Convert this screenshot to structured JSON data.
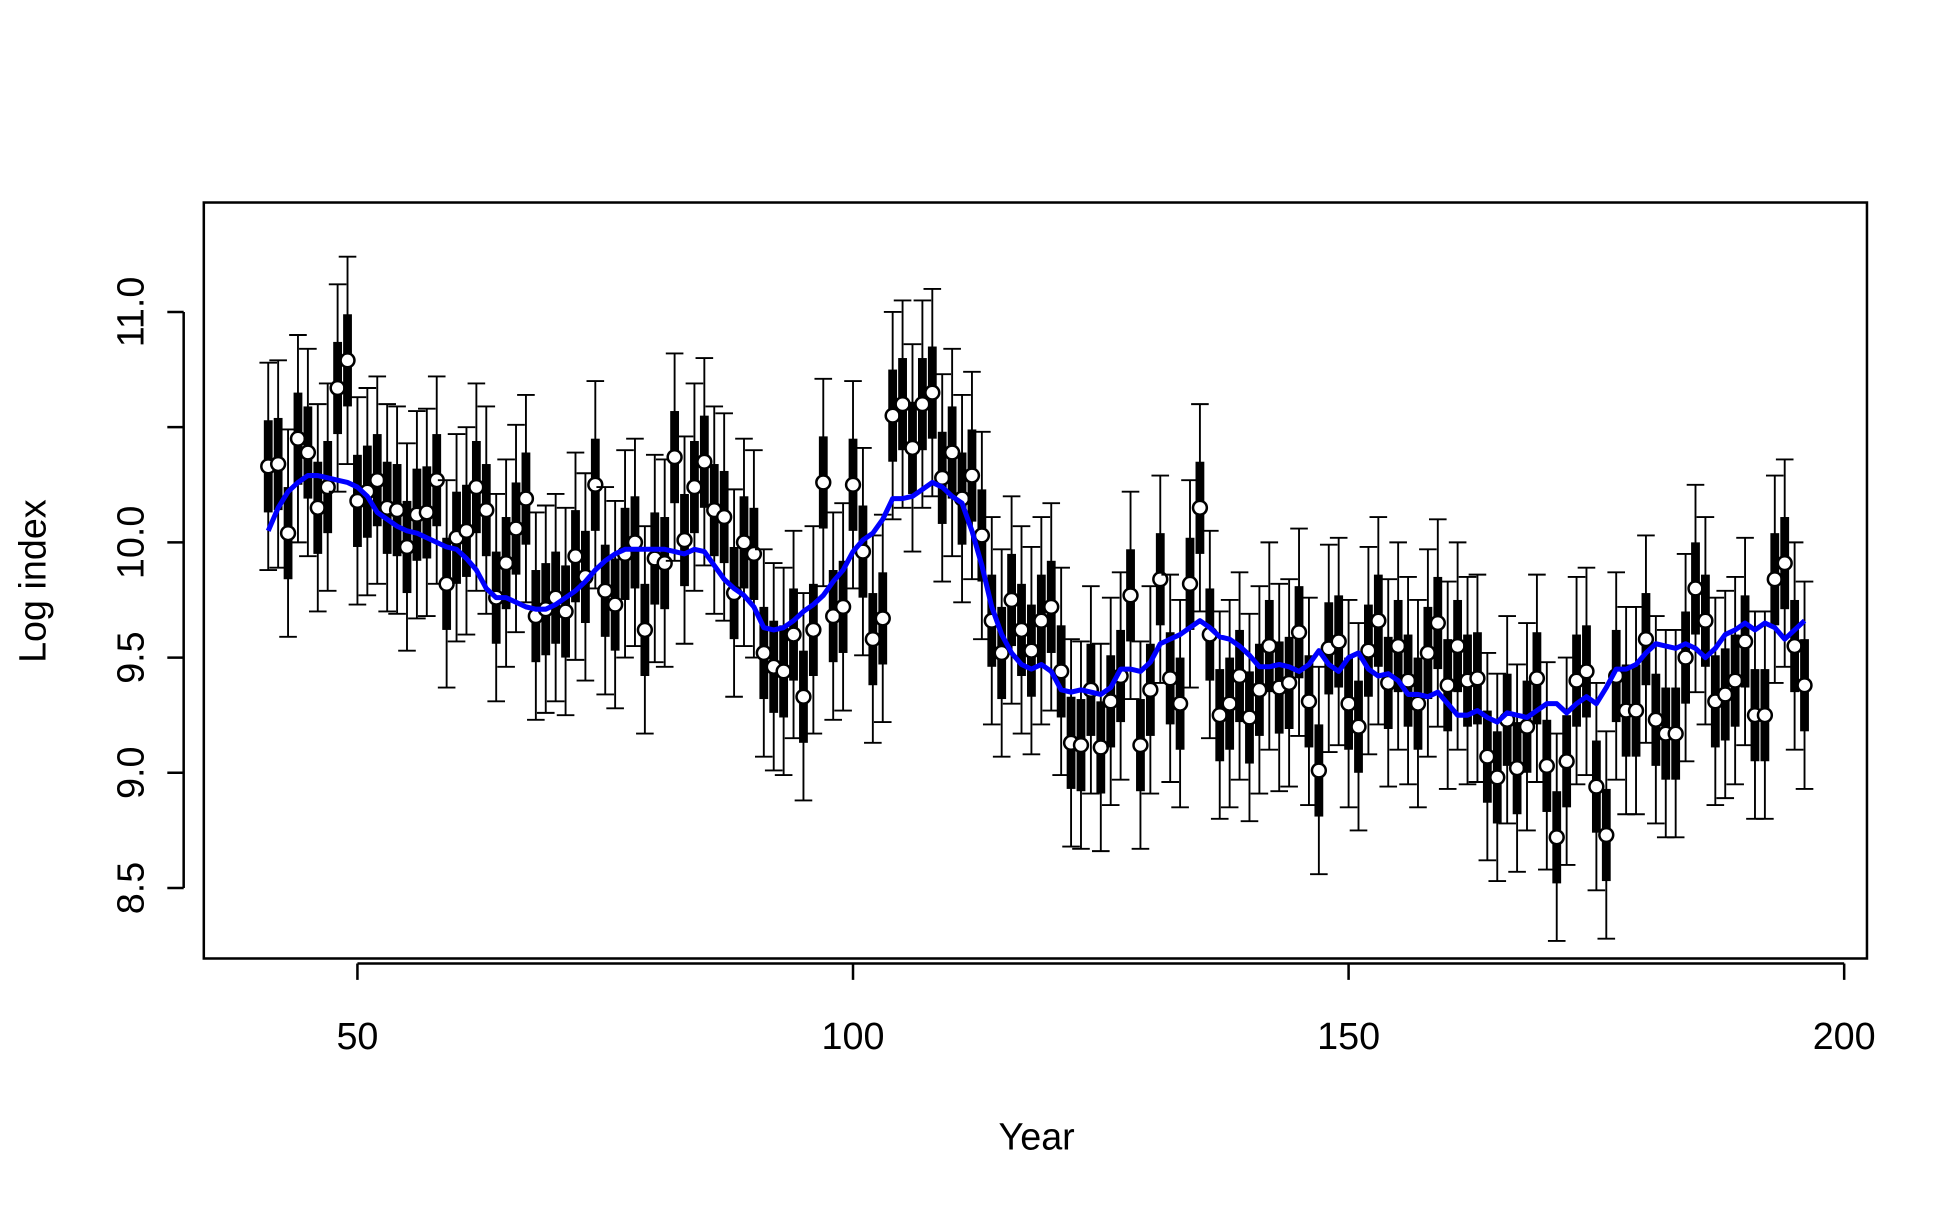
{
  "chart_data": {
    "type": "errorbar",
    "xlabel": "Year",
    "ylabel": "Log index",
    "x": [
      41,
      42,
      43,
      44,
      45,
      46,
      47,
      48,
      49,
      50,
      51,
      52,
      53,
      54,
      55,
      56,
      57,
      58,
      59,
      60,
      61,
      62,
      63,
      64,
      65,
      66,
      67,
      68,
      69,
      70,
      71,
      72,
      73,
      74,
      75,
      76,
      77,
      78,
      79,
      80,
      81,
      82,
      83,
      84,
      85,
      86,
      87,
      88,
      89,
      90,
      91,
      92,
      93,
      94,
      95,
      96,
      97,
      98,
      99,
      100,
      101,
      102,
      103,
      104,
      105,
      106,
      107,
      108,
      109,
      110,
      111,
      112,
      113,
      114,
      115,
      116,
      117,
      118,
      119,
      120,
      121,
      122,
      123,
      124,
      125,
      126,
      127,
      128,
      129,
      130,
      131,
      132,
      133,
      134,
      135,
      136,
      137,
      138,
      139,
      140,
      141,
      142,
      143,
      144,
      145,
      146,
      147,
      148,
      149,
      150,
      151,
      152,
      153,
      154,
      155,
      156,
      157,
      158,
      159,
      160,
      161,
      162,
      163,
      164,
      165,
      166,
      167,
      168,
      169,
      170,
      171,
      172,
      173,
      174,
      175,
      176,
      177,
      178,
      179,
      180,
      181,
      182,
      183,
      184,
      185,
      186,
      187,
      188,
      189,
      190,
      191,
      192,
      193,
      194,
      195,
      196
    ],
    "series": [
      {
        "type": "points",
        "color": "#000000",
        "error_outer": 0.45,
        "error_inner": 0.2,
        "values": [
          10.33,
          10.34,
          10.04,
          10.45,
          10.39,
          10.15,
          10.24,
          10.67,
          10.79,
          10.18,
          10.22,
          10.27,
          10.15,
          10.14,
          9.98,
          10.12,
          10.13,
          10.27,
          9.82,
          10.02,
          10.05,
          10.24,
          10.14,
          9.76,
          9.91,
          10.06,
          10.19,
          9.68,
          9.71,
          9.76,
          9.7,
          9.94,
          9.85,
          10.25,
          9.79,
          9.73,
          9.95,
          10.0,
          9.62,
          9.93,
          9.91,
          10.37,
          10.01,
          10.24,
          10.35,
          10.14,
          10.11,
          9.78,
          10.0,
          9.95,
          9.52,
          9.46,
          9.44,
          9.6,
          9.33,
          9.62,
          10.26,
          9.68,
          9.72,
          10.25,
          9.96,
          9.58,
          9.67,
          10.55,
          10.6,
          10.41,
          10.6,
          10.65,
          10.28,
          10.39,
          10.19,
          10.29,
          10.03,
          9.66,
          9.52,
          9.75,
          9.62,
          9.53,
          9.66,
          9.72,
          9.44,
          9.13,
          9.12,
          9.36,
          9.11,
          9.31,
          9.42,
          9.77,
          9.12,
          9.36,
          9.84,
          9.41,
          9.3,
          9.82,
          10.15,
          9.6,
          9.25,
          9.3,
          9.42,
          9.24,
          9.36,
          9.55,
          9.37,
          9.39,
          9.61,
          9.31,
          9.01,
          9.54,
          9.57,
          9.3,
          9.2,
          9.53,
          9.66,
          9.39,
          9.55,
          9.4,
          9.3,
          9.52,
          9.65,
          9.38,
          9.55,
          9.4,
          9.41,
          9.07,
          8.98,
          9.23,
          9.02,
          9.2,
          9.41,
          9.03,
          8.72,
          9.05,
          9.4,
          9.44,
          8.94,
          8.73,
          9.42,
          9.27,
          9.27,
          9.58,
          9.23,
          9.17,
          9.17,
          9.5,
          9.8,
          9.66,
          9.31,
          9.34,
          9.4,
          9.57,
          9.25,
          9.25,
          9.84,
          9.91,
          9.55,
          9.38
        ]
      },
      {
        "type": "line",
        "color": "#0000ff",
        "values": [
          10.05,
          10.15,
          10.22,
          10.26,
          10.29,
          10.29,
          10.28,
          10.27,
          10.26,
          10.24,
          10.2,
          10.13,
          10.1,
          10.07,
          10.05,
          10.04,
          10.02,
          10.0,
          9.98,
          9.97,
          9.93,
          9.88,
          9.8,
          9.76,
          9.76,
          9.74,
          9.72,
          9.71,
          9.71,
          9.73,
          9.76,
          9.79,
          9.83,
          9.88,
          9.92,
          9.95,
          9.97,
          9.97,
          9.97,
          9.97,
          9.97,
          9.96,
          9.95,
          9.97,
          9.96,
          9.9,
          9.84,
          9.8,
          9.77,
          9.72,
          9.63,
          9.62,
          9.63,
          9.66,
          9.7,
          9.73,
          9.77,
          9.83,
          9.88,
          9.96,
          10.01,
          10.04,
          10.1,
          10.19,
          10.19,
          10.2,
          10.23,
          10.26,
          10.24,
          10.2,
          10.17,
          10.05,
          9.9,
          9.72,
          9.6,
          9.52,
          9.47,
          9.45,
          9.47,
          9.44,
          9.36,
          9.35,
          9.36,
          9.35,
          9.34,
          9.37,
          9.45,
          9.45,
          9.44,
          9.48,
          9.56,
          9.58,
          9.6,
          9.63,
          9.66,
          9.63,
          9.59,
          9.58,
          9.55,
          9.51,
          9.46,
          9.46,
          9.47,
          9.46,
          9.44,
          9.47,
          9.53,
          9.47,
          9.44,
          9.5,
          9.52,
          9.45,
          9.42,
          9.43,
          9.4,
          9.34,
          9.34,
          9.33,
          9.35,
          9.3,
          9.25,
          9.25,
          9.27,
          9.24,
          9.22,
          9.26,
          9.25,
          9.24,
          9.27,
          9.3,
          9.3,
          9.26,
          9.3,
          9.33,
          9.3,
          9.37,
          9.45,
          9.45,
          9.47,
          9.52,
          9.56,
          9.55,
          9.54,
          9.56,
          9.54,
          9.5,
          9.54,
          9.6,
          9.62,
          9.65,
          9.62,
          9.65,
          9.63,
          9.58,
          9.62,
          9.66
        ]
      }
    ],
    "xlim": [
      34.5,
      202.3
    ],
    "ylim": [
      8.194,
      11.475
    ],
    "xticks": [
      50,
      100,
      150,
      200
    ],
    "yticks": [
      {
        "value": 8.5,
        "label": "8.5"
      },
      {
        "value": 9,
        "label": "9.0"
      },
      {
        "value": 9.5,
        "label": "9.5"
      },
      {
        "value": 10,
        "label": "10.0"
      },
      {
        "value": 10.5
      },
      {
        "value": 11,
        "label": "11.0"
      }
    ]
  }
}
